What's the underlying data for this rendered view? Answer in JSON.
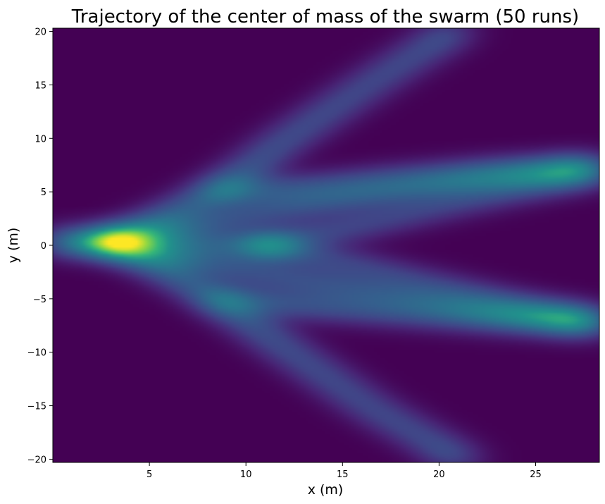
{
  "chart_data": {
    "type": "heatmap",
    "title": "Trajectory of the center of mass of the swarm (50 runs)",
    "xlabel": "x (m)",
    "ylabel": "y (m)",
    "xlim": [
      0.0,
      28.3
    ],
    "ylim": [
      -20.3,
      20.3
    ],
    "x_ticks": [
      5,
      10,
      15,
      20,
      25
    ],
    "x_tick_labels": [
      "5",
      "10",
      "15",
      "20",
      "25"
    ],
    "y_ticks": [
      20,
      15,
      10,
      5,
      0,
      -5,
      -10,
      -15,
      -20
    ],
    "y_tick_labels": [
      "20",
      "15",
      "10",
      "5",
      "0",
      "−5",
      "−10",
      "−15",
      "−20"
    ],
    "colormap": "viridis",
    "background_color": "#440154",
    "grid": false,
    "density_paths": [
      {
        "points": [
          [
            0,
            0.3
          ],
          [
            2.8,
            0.3
          ],
          [
            5.5,
            2.4
          ],
          [
            8.5,
            5.0
          ],
          [
            12,
            9.8
          ],
          [
            16.5,
            15.2
          ],
          [
            21,
            20.3
          ]
        ],
        "weights": [
          0.6,
          1.0,
          0.85,
          0.85,
          0.7,
          0.65,
          0.7
        ]
      },
      {
        "points": [
          [
            0,
            0.3
          ],
          [
            2.8,
            0.3
          ],
          [
            5.5,
            -2.0
          ],
          [
            8.5,
            -5.0
          ],
          [
            12,
            -9.6
          ],
          [
            16.5,
            -15.2
          ],
          [
            21.5,
            -20.3
          ]
        ],
        "weights": [
          0.6,
          1.0,
          0.85,
          0.85,
          0.7,
          0.65,
          0.7
        ]
      },
      {
        "points": [
          [
            8.5,
            5.0
          ],
          [
            13,
            5.3
          ],
          [
            18,
            6.2
          ],
          [
            23,
            6.9
          ],
          [
            28.3,
            7.3
          ]
        ],
        "weights": [
          0.85,
          0.75,
          0.7,
          0.75,
          0.8
        ]
      },
      {
        "points": [
          [
            8.5,
            -5.0
          ],
          [
            13,
            -5.6
          ],
          [
            18,
            -6.3
          ],
          [
            23,
            -6.9
          ],
          [
            28.3,
            -7.3
          ]
        ],
        "weights": [
          0.85,
          0.75,
          0.7,
          0.75,
          0.8
        ]
      },
      {
        "points": [
          [
            2.8,
            0.3
          ],
          [
            6.5,
            1.5
          ],
          [
            10.5,
            3.0
          ],
          [
            17,
            4.8
          ],
          [
            23,
            6.3
          ],
          [
            28.3,
            7.3
          ]
        ],
        "weights": [
          0.8,
          0.75,
          0.7,
          0.7,
          0.75,
          0.8
        ]
      },
      {
        "points": [
          [
            2.8,
            0.3
          ],
          [
            6.5,
            -1.2
          ],
          [
            10.5,
            -2.6
          ],
          [
            17,
            -4.5
          ],
          [
            23,
            -6.2
          ],
          [
            28.3,
            -7.3
          ]
        ],
        "weights": [
          0.8,
          0.75,
          0.7,
          0.7,
          0.75,
          0.8
        ]
      },
      {
        "points": [
          [
            2.8,
            0.3
          ],
          [
            7,
            0.1
          ],
          [
            10.5,
            0.0
          ],
          [
            12.5,
            0.0
          ]
        ],
        "weights": [
          0.7,
          0.75,
          0.9,
          0.6
        ]
      },
      {
        "points": [
          [
            10.5,
            0.0
          ],
          [
            15,
            1.5
          ],
          [
            20,
            3.6
          ],
          [
            24,
            5.2
          ],
          [
            28.3,
            6.8
          ]
        ],
        "weights": [
          0.7,
          0.6,
          0.55,
          0.6,
          0.7
        ]
      },
      {
        "points": [
          [
            10.5,
            0.0
          ],
          [
            15,
            -1.6
          ],
          [
            20,
            -3.8
          ],
          [
            24,
            -5.5
          ],
          [
            28.3,
            -7.0
          ]
        ],
        "weights": [
          0.7,
          0.6,
          0.55,
          0.6,
          0.7
        ]
      }
    ],
    "hotspots": [
      {
        "x": 2.8,
        "y": 0.3,
        "intensity": 1.0
      },
      {
        "x": 8.7,
        "y": 5.2,
        "intensity": 0.9
      },
      {
        "x": 8.7,
        "y": -5.0,
        "intensity": 0.9
      },
      {
        "x": 10.7,
        "y": 0.0,
        "intensity": 0.95
      },
      {
        "x": 26.7,
        "y": 7.3,
        "intensity": 0.85
      },
      {
        "x": 26.7,
        "y": -7.3,
        "intensity": 0.9
      },
      {
        "x": 20.3,
        "y": 19.8,
        "intensity": 0.75
      },
      {
        "x": 20.3,
        "y": -19.8,
        "intensity": 0.8
      }
    ]
  }
}
